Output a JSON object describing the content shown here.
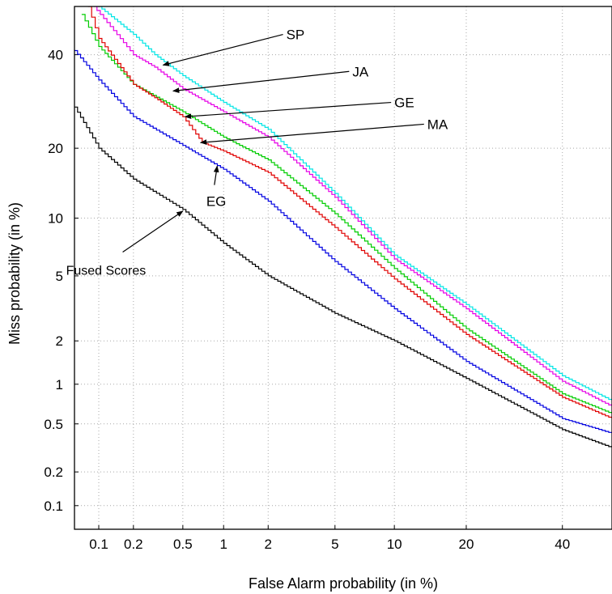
{
  "chart_data": {
    "type": "line",
    "xlabel": "False Alarm probability (in %)",
    "ylabel": "Miss probability (in %)",
    "x_scale": "probit",
    "y_scale": "probit",
    "xlim": [
      0.06,
      52
    ],
    "ylim": [
      0.06,
      52
    ],
    "x_ticks": [
      0.1,
      0.2,
      0.5,
      1,
      2,
      5,
      10,
      20,
      40
    ],
    "x_tick_labels": [
      "0.1",
      "0.2",
      "0.5",
      "1",
      "2",
      "5",
      "10",
      "20",
      "40"
    ],
    "y_ticks": [
      0.1,
      0.2,
      0.5,
      1,
      2,
      5,
      10,
      20,
      40
    ],
    "y_tick_labels": [
      "0.1",
      "0.2",
      "0.5",
      "1",
      "2",
      "5",
      "10",
      "20",
      "40"
    ],
    "grid": true,
    "legend": "none",
    "series": [
      {
        "name": "SP",
        "color": "#00e5e5",
        "x": [
          0.1,
          0.2,
          0.3,
          0.5,
          1,
          2,
          5,
          10,
          20,
          40,
          52
        ],
        "y": [
          52,
          45,
          40,
          35,
          29,
          23.5,
          13,
          6.5,
          3.4,
          1.15,
          0.75
        ]
      },
      {
        "name": "JA",
        "color": "#e600e6",
        "x": [
          0.09,
          0.2,
          0.3,
          0.5,
          1,
          2,
          5,
          10,
          20,
          40,
          52
        ],
        "y": [
          52,
          40,
          37,
          32,
          27,
          22,
          12.5,
          6.2,
          3.2,
          1.05,
          0.68
        ]
      },
      {
        "name": "GE",
        "color": "#00cc00",
        "x": [
          0.07,
          0.1,
          0.2,
          0.5,
          1,
          2,
          5,
          10,
          20,
          40,
          52
        ],
        "y": [
          50,
          42,
          33,
          27,
          22,
          18,
          10.5,
          5.5,
          2.4,
          0.85,
          0.6
        ]
      },
      {
        "name": "MA",
        "color": "#e00000",
        "x": [
          0.08,
          0.1,
          0.2,
          0.3,
          0.5,
          0.7,
          1,
          2,
          5,
          10,
          20,
          40,
          52
        ],
        "y": [
          52,
          44,
          33,
          30,
          26,
          21,
          19.5,
          16,
          9,
          4.8,
          2.2,
          0.8,
          0.55
        ]
      },
      {
        "name": "EG",
        "color": "#0000e0",
        "x": [
          0.06,
          0.1,
          0.2,
          0.5,
          1,
          2,
          5,
          10,
          20,
          40,
          52
        ],
        "y": [
          41,
          34,
          26,
          20.5,
          16.5,
          12,
          6,
          3.2,
          1.45,
          0.55,
          0.42
        ]
      },
      {
        "name": "Fused Scores",
        "color": "#000000",
        "x": [
          0.06,
          0.1,
          0.2,
          0.5,
          1,
          2,
          5,
          10,
          20,
          40,
          52
        ],
        "y": [
          28,
          20,
          15,
          11,
          7.5,
          5,
          3,
          2,
          1.1,
          0.45,
          0.32
        ]
      }
    ],
    "annotations": [
      {
        "text": "SP",
        "series": "SP",
        "text_at": [
          2.6,
          45.0
        ],
        "arrow_to": [
          0.35,
          37.5
        ]
      },
      {
        "text": "JA",
        "series": "JA",
        "text_at": [
          6.2,
          36.0
        ],
        "arrow_to": [
          0.42,
          31.5
        ]
      },
      {
        "text": "GE",
        "series": "GE",
        "text_at": [
          10.0,
          29.0
        ],
        "arrow_to": [
          0.52,
          26.0
        ]
      },
      {
        "text": "MA",
        "series": "MA",
        "text_at": [
          14.0,
          24.5
        ],
        "arrow_to": [
          0.68,
          21.0
        ]
      },
      {
        "text": "EG",
        "series": "EG",
        "text_at": [
          0.75,
          12.0
        ],
        "arrow_to": [
          0.9,
          17.0
        ]
      },
      {
        "text": "Fused Scores",
        "series": "Fused Scores",
        "text_at": [
          0.05,
          5.4
        ],
        "arrow_to": [
          0.5,
          10.8
        ]
      }
    ]
  }
}
